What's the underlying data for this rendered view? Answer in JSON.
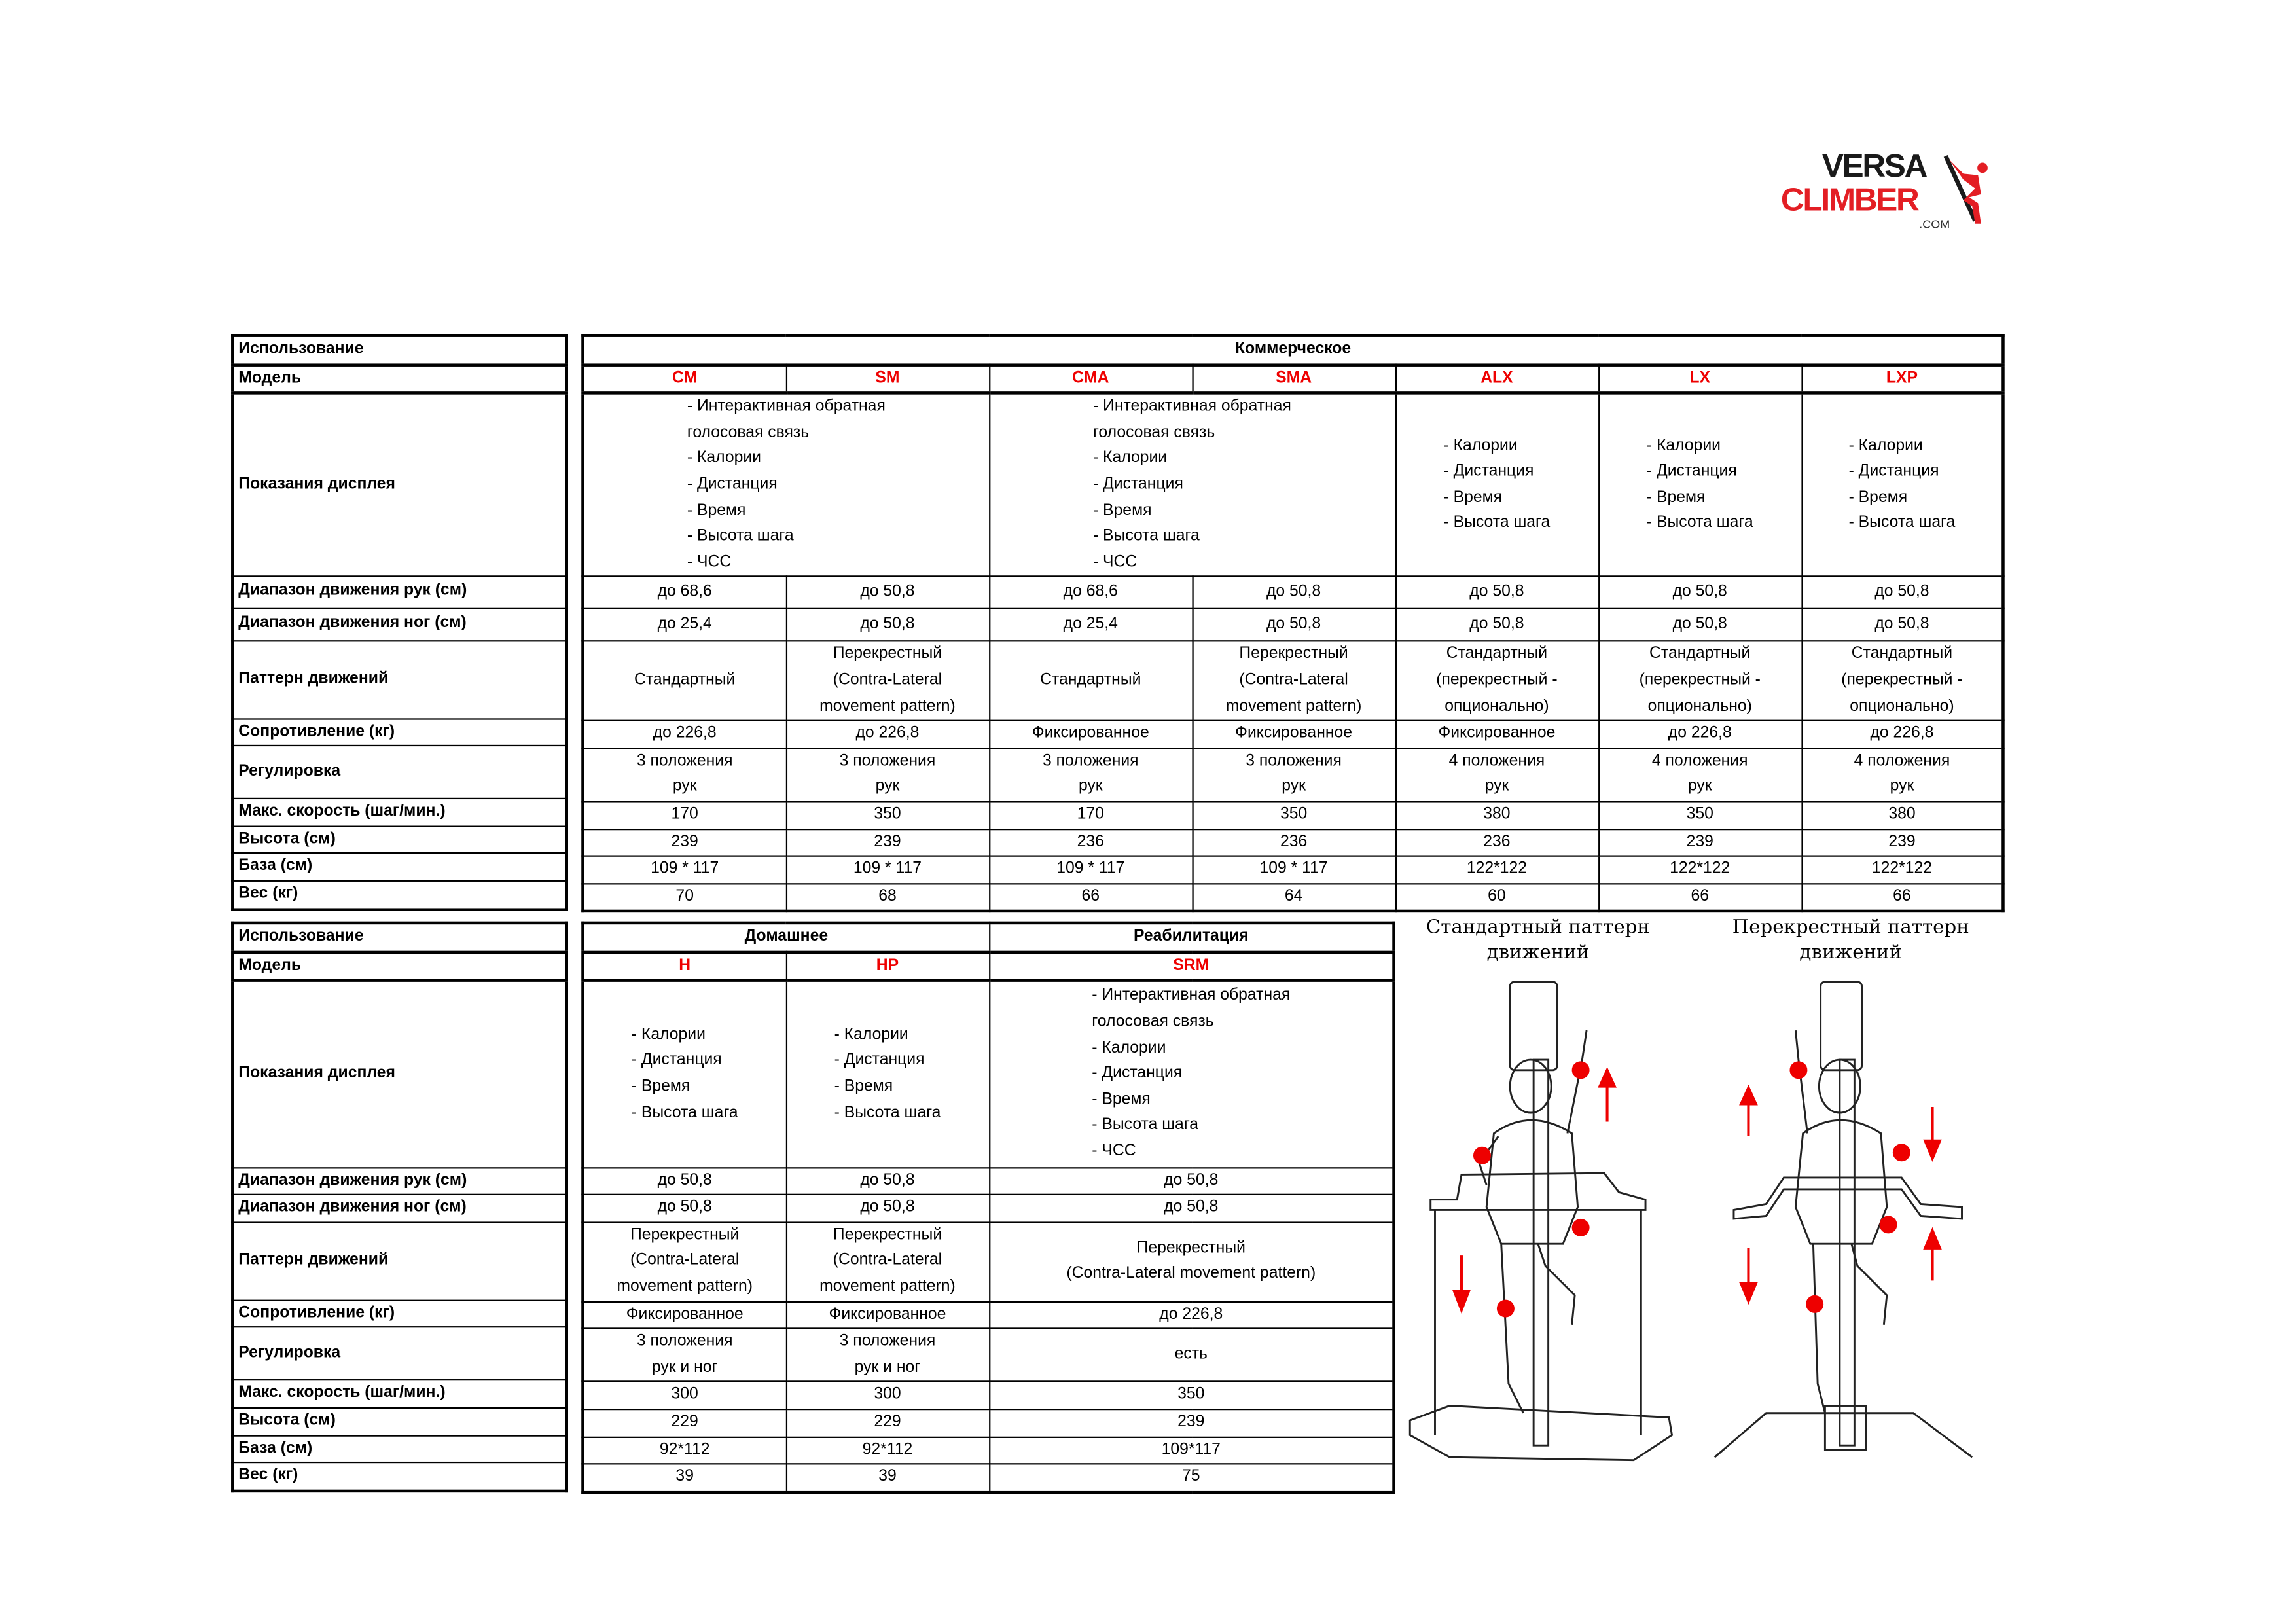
{
  "logo": {
    "line1": "VERSA",
    "line2": "CLIMBER",
    "suffix": ".COM",
    "colors": {
      "dark": "#1a1a1a",
      "red": "#e31e24"
    }
  },
  "accent_color": "#e00000",
  "row_labels": [
    "Использование",
    "Модель",
    "Показания дисплея",
    "Диапазон движения рук (см)",
    "Диапазон движения ног (см)",
    "Паттерн движений",
    "Сопротивление (кг)",
    "Регулировка",
    "Макс. скорость (шаг/мин.)",
    "Высота (см)",
    "База (см)",
    "Вес (кг)"
  ],
  "commercial": {
    "usage": [
      {
        "text": "Коммерческое",
        "span": 7
      }
    ],
    "models": [
      "CM",
      "SM",
      "CMA",
      "SMA",
      "ALX",
      "LX",
      "LXP"
    ],
    "display": [
      {
        "span": 2,
        "lines": [
          "- Интерактивная обратная",
          "голосовая связь",
          "- Калории",
          "- Дистанция",
          "- Время",
          "- Высота шага",
          "- ЧСС"
        ]
      },
      {
        "span": 2,
        "lines": [
          "- Интерактивная обратная",
          "голосовая связь",
          "- Калории",
          "- Дистанция",
          "- Время",
          "- Высота шага",
          "- ЧСС"
        ]
      },
      {
        "span": 1,
        "lines": [
          "- Калории",
          "- Дистанция",
          "- Время",
          "- Высота шага"
        ]
      },
      {
        "span": 1,
        "lines": [
          "- Калории",
          "- Дистанция",
          "- Время",
          "- Высота шага"
        ]
      },
      {
        "span": 1,
        "lines": [
          "- Калории",
          "- Дистанция",
          "- Время",
          "- Высота шага"
        ]
      }
    ],
    "rows": [
      [
        [
          "до 68,6"
        ],
        [
          "до 50,8"
        ],
        [
          "до 68,6"
        ],
        [
          "до 50,8"
        ],
        [
          "до 50,8"
        ],
        [
          "до 50,8"
        ],
        [
          "до 50,8"
        ]
      ],
      [
        [
          "до 25,4"
        ],
        [
          "до 50,8"
        ],
        [
          "до 25,4"
        ],
        [
          "до 50,8"
        ],
        [
          "до 50,8"
        ],
        [
          "до 50,8"
        ],
        [
          "до 50,8"
        ]
      ],
      [
        [
          "Стандартный"
        ],
        [
          "Перекрестный",
          "(Contra-Lateral",
          "movement pattern)"
        ],
        [
          "Стандартный"
        ],
        [
          "Перекрестный",
          "(Contra-Lateral",
          "movement pattern)"
        ],
        [
          "Стандартный",
          "(перекрестный -",
          "опционально)"
        ],
        [
          "Стандартный",
          "(перекрестный -",
          "опционально)"
        ],
        [
          "Стандартный",
          "(перекрестный -",
          "опционально)"
        ]
      ],
      [
        [
          "до 226,8"
        ],
        [
          "до 226,8"
        ],
        [
          "Фиксированное"
        ],
        [
          "Фиксированное"
        ],
        [
          "Фиксированное"
        ],
        [
          "до 226,8"
        ],
        [
          "до 226,8"
        ]
      ],
      [
        [
          "3 положения",
          "рук"
        ],
        [
          "3 положения",
          "рук"
        ],
        [
          "3 положения",
          "рук"
        ],
        [
          "3 положения",
          "рук"
        ],
        [
          "4 положения",
          "рук"
        ],
        [
          "4 положения",
          "рук"
        ],
        [
          "4 положения",
          "рук"
        ]
      ],
      [
        [
          "170"
        ],
        [
          "350"
        ],
        [
          "170"
        ],
        [
          "350"
        ],
        [
          "380"
        ],
        [
          "350"
        ],
        [
          "380"
        ]
      ],
      [
        [
          "239"
        ],
        [
          "239"
        ],
        [
          "236"
        ],
        [
          "236"
        ],
        [
          "236"
        ],
        [
          "239"
        ],
        [
          "239"
        ]
      ],
      [
        [
          "109 * 117"
        ],
        [
          "109 * 117"
        ],
        [
          "109 * 117"
        ],
        [
          "109 * 117"
        ],
        [
          "122*122"
        ],
        [
          "122*122"
        ],
        [
          "122*122"
        ]
      ],
      [
        [
          "70"
        ],
        [
          "68"
        ],
        [
          "66"
        ],
        [
          "64"
        ],
        [
          "60"
        ],
        [
          "66"
        ],
        [
          "66"
        ]
      ]
    ]
  },
  "home_rehab": {
    "usage": [
      {
        "text": "Домашнее",
        "span": 2
      },
      {
        "text": "Реабилитация",
        "span": 1
      }
    ],
    "models": [
      "H",
      "HP",
      "SRM"
    ],
    "display": [
      {
        "span": 1,
        "lines": [
          "- Калории",
          "- Дистанция",
          "- Время",
          "- Высота шага"
        ]
      },
      {
        "span": 1,
        "lines": [
          "- Калории",
          "- Дистанция",
          "- Время",
          "- Высота шага"
        ]
      },
      {
        "span": 1,
        "lines": [
          "- Интерактивная обратная",
          "голосовая связь",
          "- Калории",
          "- Дистанция",
          "- Время",
          "- Высота шага",
          "- ЧСС"
        ]
      }
    ],
    "rows": [
      [
        [
          "до 50,8"
        ],
        [
          "до 50,8"
        ],
        [
          "до 50,8"
        ]
      ],
      [
        [
          "до 50,8"
        ],
        [
          "до 50,8"
        ],
        [
          "до 50,8"
        ]
      ],
      [
        [
          "Перекрестный",
          "(Contra-Lateral",
          "movement pattern)"
        ],
        [
          "Перекрестный",
          "(Contra-Lateral",
          "movement pattern)"
        ],
        [
          "Перекрестный",
          "(Contra-Lateral movement pattern)"
        ]
      ],
      [
        [
          "Фиксированное"
        ],
        [
          "Фиксированное"
        ],
        [
          "до 226,8"
        ]
      ],
      [
        [
          "3 положения",
          "рук и ног"
        ],
        [
          "3 положения",
          "рук и ног"
        ],
        [
          "есть"
        ]
      ],
      [
        [
          "300"
        ],
        [
          "300"
        ],
        [
          "350"
        ]
      ],
      [
        [
          "229"
        ],
        [
          "229"
        ],
        [
          "239"
        ]
      ],
      [
        [
          "92*112"
        ],
        [
          "92*112"
        ],
        [
          "109*117"
        ]
      ],
      [
        [
          "39"
        ],
        [
          "39"
        ],
        [
          "75"
        ]
      ]
    ]
  },
  "figures": [
    {
      "caption": [
        "Стандартный паттерн",
        "движений"
      ]
    },
    {
      "caption": [
        "Перекрестный паттерн",
        "движений"
      ]
    }
  ]
}
